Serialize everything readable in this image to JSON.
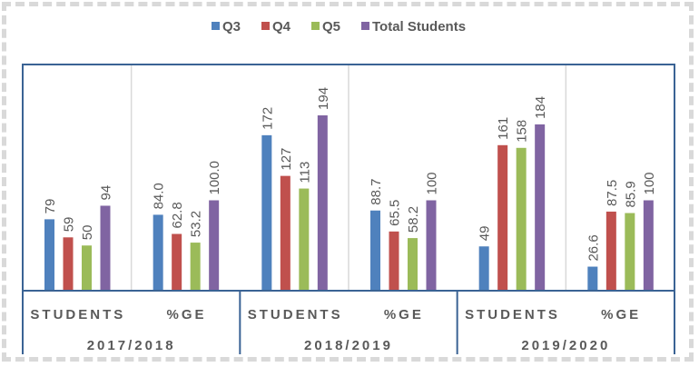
{
  "chart_data": {
    "type": "bar",
    "title": "",
    "legend_position": "top",
    "colors": {
      "Q3": "#4f81bd",
      "Q4": "#c0504d",
      "Q5": "#9bbb59",
      "Total Students": "#8064a2"
    },
    "groups": [
      {
        "year": "2017/2018",
        "subgroups": [
          {
            "label": "STUDENTS",
            "values": [
              79,
              59,
              50,
              94
            ],
            "labels": [
              "79",
              "59",
              "50",
              "94"
            ]
          },
          {
            "label": "%GE",
            "values": [
              84.0,
              62.8,
              53.2,
              100.0
            ],
            "labels": [
              "84.0",
              "62.8",
              "53.2",
              "100.0"
            ]
          }
        ]
      },
      {
        "year": "2018/2019",
        "subgroups": [
          {
            "label": "STUDENTS",
            "values": [
              172,
              127,
              113,
              194
            ],
            "labels": [
              "172",
              "127",
              "113",
              "194"
            ]
          },
          {
            "label": "%GE",
            "values": [
              88.7,
              65.5,
              58.2,
              100
            ],
            "labels": [
              "88.7",
              "65.5",
              "58.2",
              "100"
            ]
          }
        ]
      },
      {
        "year": "2019/2020",
        "subgroups": [
          {
            "label": "STUDENTS",
            "values": [
              49,
              161,
              158,
              184
            ],
            "labels": [
              "49",
              "161",
              "158",
              "184"
            ]
          },
          {
            "label": "%GE",
            "values": [
              26.6,
              87.5,
              85.9,
              100
            ],
            "labels": [
              "26.6",
              "87.5",
              "85.9",
              "100"
            ]
          }
        ]
      }
    ],
    "series": [
      {
        "name": "Q3"
      },
      {
        "name": "Q4"
      },
      {
        "name": "Q5"
      },
      {
        "name": "Total Students"
      }
    ],
    "ylim": [
      0,
      250
    ],
    "grid": true
  }
}
